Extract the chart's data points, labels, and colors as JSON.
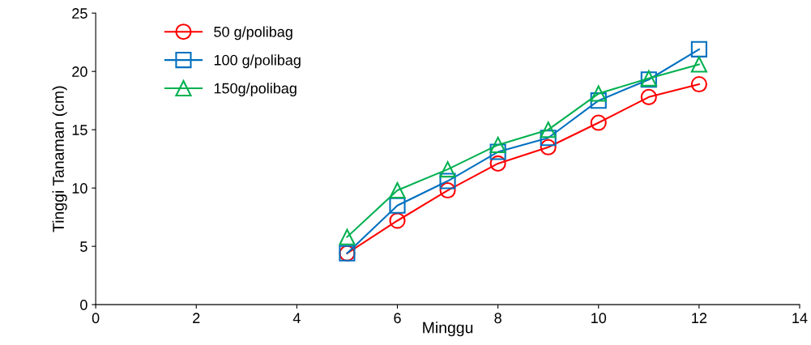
{
  "chart_data": {
    "type": "line",
    "xlabel": "Minggu",
    "ylabel": "Tinggi Tanaman (cm)",
    "x": [
      5,
      6,
      7,
      8,
      9,
      10,
      11,
      12
    ],
    "series": [
      {
        "name": "50 g/polibag",
        "color": "#ff0000",
        "marker": "circle",
        "values": [
          4.4,
          7.2,
          9.8,
          12.1,
          13.5,
          15.6,
          17.8,
          18.9
        ]
      },
      {
        "name": "100 g/polibag",
        "color": "#0070c0",
        "marker": "square",
        "values": [
          4.4,
          8.5,
          10.6,
          13.1,
          14.3,
          17.5,
          19.3,
          21.9
        ]
      },
      {
        "name": "150g/polibag",
        "color": "#00b050",
        "marker": "triangle",
        "values": [
          5.8,
          9.8,
          11.6,
          13.7,
          15.0,
          18.1,
          19.4,
          20.6
        ]
      }
    ],
    "xlim": [
      0,
      14
    ],
    "xticks": [
      0,
      2,
      4,
      6,
      8,
      10,
      12,
      14
    ],
    "ylim": [
      0,
      25
    ],
    "yticks": [
      0,
      5,
      10,
      15,
      20,
      25
    ],
    "grid": false,
    "legend": "top left"
  }
}
